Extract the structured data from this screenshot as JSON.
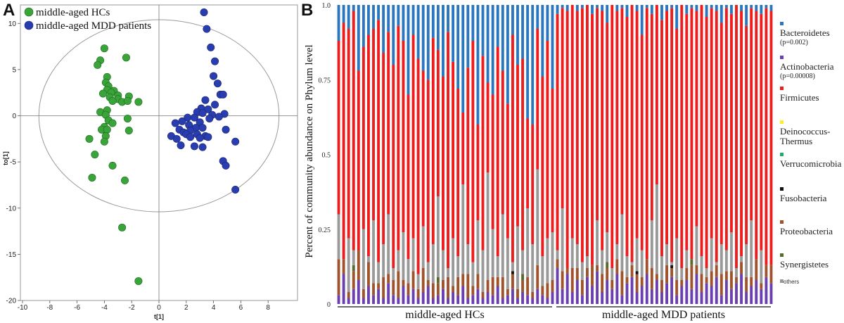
{
  "panels": {
    "a_letter": "A",
    "b_letter": "B"
  },
  "chart_data": [
    {
      "type": "scatter",
      "panel": "A",
      "xlabel": "t[1]",
      "ylabel": "to[1]",
      "xlim": [
        -10,
        10
      ],
      "ylim": [
        -20,
        12
      ],
      "xticks": [
        -10,
        -8,
        -6,
        -4,
        -2,
        0,
        2,
        4,
        6,
        8
      ],
      "yticks": [
        10,
        5,
        0,
        -5,
        -10,
        -15,
        -20
      ],
      "legend_position": "top-left",
      "ellipse": {
        "cx": 0,
        "cy": 0,
        "rx": 8.8,
        "ry": 10.4
      },
      "series": [
        {
          "name": "middle-aged HCs",
          "color": "#3aa33a",
          "points": [
            [
              -4.0,
              7.3
            ],
            [
              -2.4,
              6.3
            ],
            [
              -4.3,
              6.0
            ],
            [
              -4.5,
              5.5
            ],
            [
              -3.8,
              4.2
            ],
            [
              -3.9,
              3.6
            ],
            [
              -3.7,
              3.2
            ],
            [
              -3.8,
              2.8
            ],
            [
              -3.3,
              2.7
            ],
            [
              -3.5,
              2.5
            ],
            [
              -4.1,
              2.4
            ],
            [
              -3.0,
              2.2
            ],
            [
              -3.6,
              2.0
            ],
            [
              -2.2,
              2.1
            ],
            [
              -3.0,
              1.8
            ],
            [
              -3.4,
              1.6
            ],
            [
              -2.7,
              1.5
            ],
            [
              -2.3,
              1.6
            ],
            [
              -1.5,
              1.5
            ],
            [
              -3.8,
              0.6
            ],
            [
              -4.3,
              0.4
            ],
            [
              -3.9,
              0.1
            ],
            [
              -3.7,
              -0.5
            ],
            [
              -2.3,
              -0.3
            ],
            [
              -3.4,
              -0.8
            ],
            [
              -4.0,
              -1.2
            ],
            [
              -4.2,
              -1.5
            ],
            [
              -3.8,
              -1.5
            ],
            [
              -2.2,
              -1.6
            ],
            [
              -3.9,
              -2.2
            ],
            [
              -5.1,
              -2.5
            ],
            [
              -4.0,
              -2.8
            ],
            [
              -4.7,
              -4.2
            ],
            [
              -3.4,
              -5.4
            ],
            [
              -4.9,
              -6.7
            ],
            [
              -2.5,
              -7.0
            ],
            [
              -2.7,
              -12.1
            ],
            [
              -1.5,
              -17.9
            ]
          ]
        },
        {
          "name": "middle-aged MDD patients",
          "color": "#2a3db0",
          "points": [
            [
              3.3,
              11.2
            ],
            [
              3.5,
              9.4
            ],
            [
              3.8,
              7.4
            ],
            [
              4.1,
              5.9
            ],
            [
              4.0,
              4.3
            ],
            [
              4.3,
              3.5
            ],
            [
              4.5,
              2.3
            ],
            [
              4.7,
              2.3
            ],
            [
              3.4,
              1.7
            ],
            [
              4.1,
              1.2
            ],
            [
              3.1,
              0.8
            ],
            [
              3.6,
              0.7
            ],
            [
              2.8,
              0.4
            ],
            [
              3.2,
              0.3
            ],
            [
              3.9,
              0.1
            ],
            [
              4.8,
              0.2
            ],
            [
              2.1,
              -0.2
            ],
            [
              2.6,
              -0.2
            ],
            [
              3.7,
              -0.3
            ],
            [
              4.4,
              -0.1
            ],
            [
              1.7,
              -0.6
            ],
            [
              1.2,
              -0.8
            ],
            [
              3.0,
              -0.7
            ],
            [
              2.2,
              -1.0
            ],
            [
              4.9,
              -1.5
            ],
            [
              2.7,
              -1.3
            ],
            [
              1.5,
              -1.5
            ],
            [
              3.2,
              -1.3
            ],
            [
              2.3,
              -1.6
            ],
            [
              1.8,
              -1.8
            ],
            [
              2.0,
              -2.0
            ],
            [
              3.4,
              -2.2
            ],
            [
              2.8,
              -2.0
            ],
            [
              2.3,
              -2.3
            ],
            [
              3.0,
              -2.4
            ],
            [
              0.9,
              -2.2
            ],
            [
              3.6,
              -2.3
            ],
            [
              1.3,
              -2.5
            ],
            [
              5.6,
              -2.8
            ],
            [
              1.6,
              -3.2
            ],
            [
              2.6,
              -3.3
            ],
            [
              3.2,
              -3.4
            ],
            [
              4.7,
              -4.9
            ],
            [
              4.9,
              -5.4
            ],
            [
              5.6,
              -8.0
            ]
          ]
        }
      ]
    },
    {
      "type": "bar",
      "stacked": true,
      "panel": "B",
      "ylabel": "Percent of community abundance on Phylum level",
      "ylim": [
        0,
        1
      ],
      "yticks": [
        "1.0",
        "0.75",
        "0.5",
        "0.25",
        "0"
      ],
      "groups": [
        {
          "name": "middle-aged HCs",
          "count": 44
        },
        {
          "name": "middle-aged MDD patients",
          "count": 44
        }
      ],
      "series": [
        {
          "name": "Bacteroidetes",
          "note": "(p=0.002)",
          "color": "#2a77c0"
        },
        {
          "name": "Actinobacteria",
          "note": "(p=0.00008)",
          "color": "#6a3fb0"
        },
        {
          "name": "Firmicutes",
          "note": "",
          "color": "#ee1c1c"
        },
        {
          "name": "Deinococcus-Thermus",
          "note": "",
          "color": "#ffee22"
        },
        {
          "name": "Verrucomicrobia",
          "note": "",
          "color": "#22aa66"
        },
        {
          "name": "Fusobacteria",
          "note": "",
          "color": "#111111"
        },
        {
          "name": "Proteobacteria",
          "note": "",
          "color": "#a0522d"
        },
        {
          "name": "Synergistetes",
          "note": "",
          "color": "#556b2f"
        },
        {
          "name": "others",
          "note": "",
          "color": "#999999"
        }
      ],
      "bacteroidetes_top": [
        0.12,
        0.06,
        0.08,
        0.02,
        0.22,
        0.14,
        0.1,
        0.08,
        0.05,
        0.16,
        0.09,
        0.2,
        0.07,
        0.12,
        0.3,
        0.1,
        0.18,
        0.22,
        0.25,
        0.11,
        0.15,
        0.24,
        0.09,
        0.19,
        0.28,
        0.36,
        0.21,
        0.12,
        0.4,
        0.17,
        0.26,
        0.3,
        0.14,
        0.22,
        0.33,
        0.1,
        0.2,
        0.18,
        0.38,
        0.4,
        0.08,
        0.24,
        0.12,
        0.28,
        0.03,
        0.01,
        0.02,
        0.0,
        0.02,
        0.01,
        0.0,
        0.03,
        0.01,
        0.02,
        0.06,
        0.0,
        0.02,
        0.01,
        0.04,
        0.0,
        0.02,
        0.1,
        0.01,
        0.03,
        0.0,
        0.05,
        0.02,
        0.01,
        0.08,
        0.0,
        0.03,
        0.01,
        0.02,
        0.0,
        0.04,
        0.01,
        0.02,
        0.06,
        0.01,
        0.03,
        0.0,
        0.02,
        0.07,
        0.01,
        0.02,
        0.03,
        0.01,
        0.02
      ],
      "others_top": [
        0.3,
        0.12,
        0.22,
        0.18,
        0.1,
        0.25,
        0.16,
        0.28,
        0.14,
        0.2,
        0.3,
        0.12,
        0.18,
        0.24,
        0.15,
        0.22,
        0.1,
        0.26,
        0.14,
        0.2,
        0.36,
        0.18,
        0.12,
        0.22,
        0.16,
        0.4,
        0.2,
        0.14,
        0.28,
        0.18,
        0.44,
        0.25,
        0.16,
        0.3,
        0.22,
        0.14,
        0.26,
        0.18,
        0.32,
        0.2,
        0.45,
        0.16,
        0.22,
        0.24,
        0.18,
        0.32,
        0.12,
        0.22,
        0.2,
        0.14,
        0.16,
        0.1,
        0.28,
        0.18,
        0.24,
        0.12,
        0.2,
        0.3,
        0.16,
        0.14,
        0.22,
        0.18,
        0.1,
        0.28,
        0.4,
        0.16,
        0.2,
        0.14,
        0.22,
        0.12,
        0.18,
        0.1,
        0.26,
        0.16,
        0.12,
        0.22,
        0.14,
        0.2,
        0.18,
        0.24,
        0.12,
        0.16,
        0.2,
        0.28,
        0.14,
        0.18,
        0.1,
        0.12
      ],
      "actino": [
        0.03,
        0.1,
        0.02,
        0.05,
        0.08,
        0.02,
        0.06,
        0.03,
        0.05,
        0.02,
        0.07,
        0.03,
        0.02,
        0.06,
        0.03,
        0.05,
        0.02,
        0.04,
        0.06,
        0.02,
        0.03,
        0.05,
        0.02,
        0.04,
        0.03,
        0.06,
        0.02,
        0.03,
        0.05,
        0.02,
        0.04,
        0.03,
        0.06,
        0.02,
        0.03,
        0.05,
        0.02,
        0.04,
        0.03,
        0.02,
        0.05,
        0.03,
        0.02,
        0.04,
        0.12,
        0.05,
        0.1,
        0.04,
        0.08,
        0.03,
        0.09,
        0.06,
        0.11,
        0.04,
        0.08,
        0.05,
        0.1,
        0.03,
        0.07,
        0.09,
        0.04,
        0.06,
        0.1,
        0.05,
        0.08,
        0.04,
        0.07,
        0.09,
        0.03,
        0.06,
        0.08,
        0.05,
        0.1,
        0.04,
        0.07,
        0.06,
        0.09,
        0.03,
        0.08,
        0.05,
        0.07,
        0.1,
        0.04,
        0.06,
        0.08,
        0.05,
        0.09,
        0.07
      ],
      "proteo": [
        0.12,
        0.05,
        0.02,
        0.06,
        0.1,
        0.03,
        0.08,
        0.04,
        0.02,
        0.07,
        0.03,
        0.05,
        0.09,
        0.02,
        0.04,
        0.06,
        0.03,
        0.08,
        0.02,
        0.05,
        0.04,
        0.03,
        0.07,
        0.02,
        0.06,
        0.04,
        0.08,
        0.03,
        0.05,
        0.02,
        0.04,
        0.06,
        0.03,
        0.07,
        0.02,
        0.05,
        0.03,
        0.04,
        0.06,
        0.02,
        0.08,
        0.03,
        0.05,
        0.04,
        0.03,
        0.06,
        0.02,
        0.08,
        0.04,
        0.05,
        0.03,
        0.07,
        0.02,
        0.06,
        0.04,
        0.03,
        0.05,
        0.08,
        0.02,
        0.04,
        0.06,
        0.03,
        0.05,
        0.07,
        0.02,
        0.04,
        0.06,
        0.03,
        0.05,
        0.02,
        0.04,
        0.08,
        0.03,
        0.06,
        0.02,
        0.05,
        0.04,
        0.07,
        0.03,
        0.06,
        0.02,
        0.04,
        0.05,
        0.03,
        0.07,
        0.02,
        0.04,
        0.06
      ],
      "notes": "Bars read left-to-right; each bar's Firmicutes share fills the remainder between the stacked bottom segments and the Bacteroidetes top segment."
    }
  ]
}
